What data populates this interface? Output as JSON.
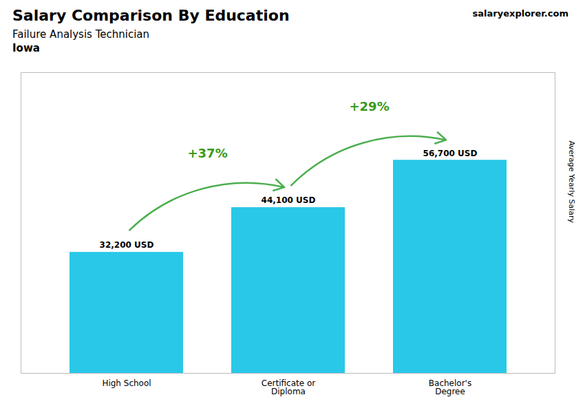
{
  "chart_data": {
    "type": "bar",
    "title": "Salary Comparison By Education",
    "subtitle": [
      "Failure Analysis Technician",
      "Iowa"
    ],
    "categories": [
      "High School",
      "Certificate or\nDiploma",
      "Bachelor's\nDegree"
    ],
    "values": [
      32200,
      44100,
      56700
    ],
    "value_labels": [
      "32,200 USD",
      "44,100 USD",
      "56,700 USD"
    ],
    "data_labels": true,
    "color": "#29c8e8",
    "ylim": [
      0,
      80000
    ],
    "ylabel": "Average Yearly Salary",
    "tick_labels": "x",
    "annotations": [
      {
        "text": "+37%",
        "from": "High School",
        "to": "Certificate or\nDiploma"
      },
      {
        "text": "+29%",
        "from": "Certificate or\nDiploma",
        "to": "Bachelor's\nDegree"
      },
      {
        "text": "salaryexplorer.com"
      }
    ]
  }
}
